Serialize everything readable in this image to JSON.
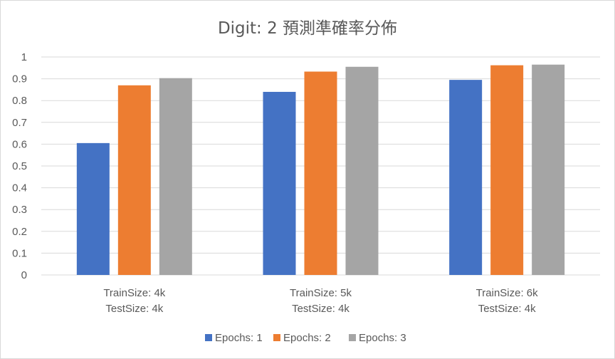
{
  "chart_data": {
    "type": "bar",
    "title": "Digit: 2  預測準確率分佈",
    "categories": [
      [
        "TrainSize: 4k",
        "TestSize: 4k"
      ],
      [
        "TrainSize: 5k",
        "TestSize: 4k"
      ],
      [
        "TrainSize: 6k",
        "TestSize: 4k"
      ]
    ],
    "series": [
      {
        "name": "Epochs: 1",
        "color": "#4472c4",
        "values": [
          0.605,
          0.84,
          0.895
        ]
      },
      {
        "name": "Epochs: 2",
        "color": "#ed7d31",
        "values": [
          0.87,
          0.933,
          0.962
        ]
      },
      {
        "name": "Epochs: 3",
        "color": "#a5a5a5",
        "values": [
          0.903,
          0.955,
          0.965
        ]
      }
    ],
    "ylim": [
      0,
      1
    ],
    "yticks": [
      "0",
      "0.1",
      "0.2",
      "0.3",
      "0.4",
      "0.5",
      "0.6",
      "0.7",
      "0.8",
      "0.9",
      "1"
    ],
    "xlabel": "",
    "ylabel": "",
    "grid": true,
    "legend_position": "bottom"
  }
}
